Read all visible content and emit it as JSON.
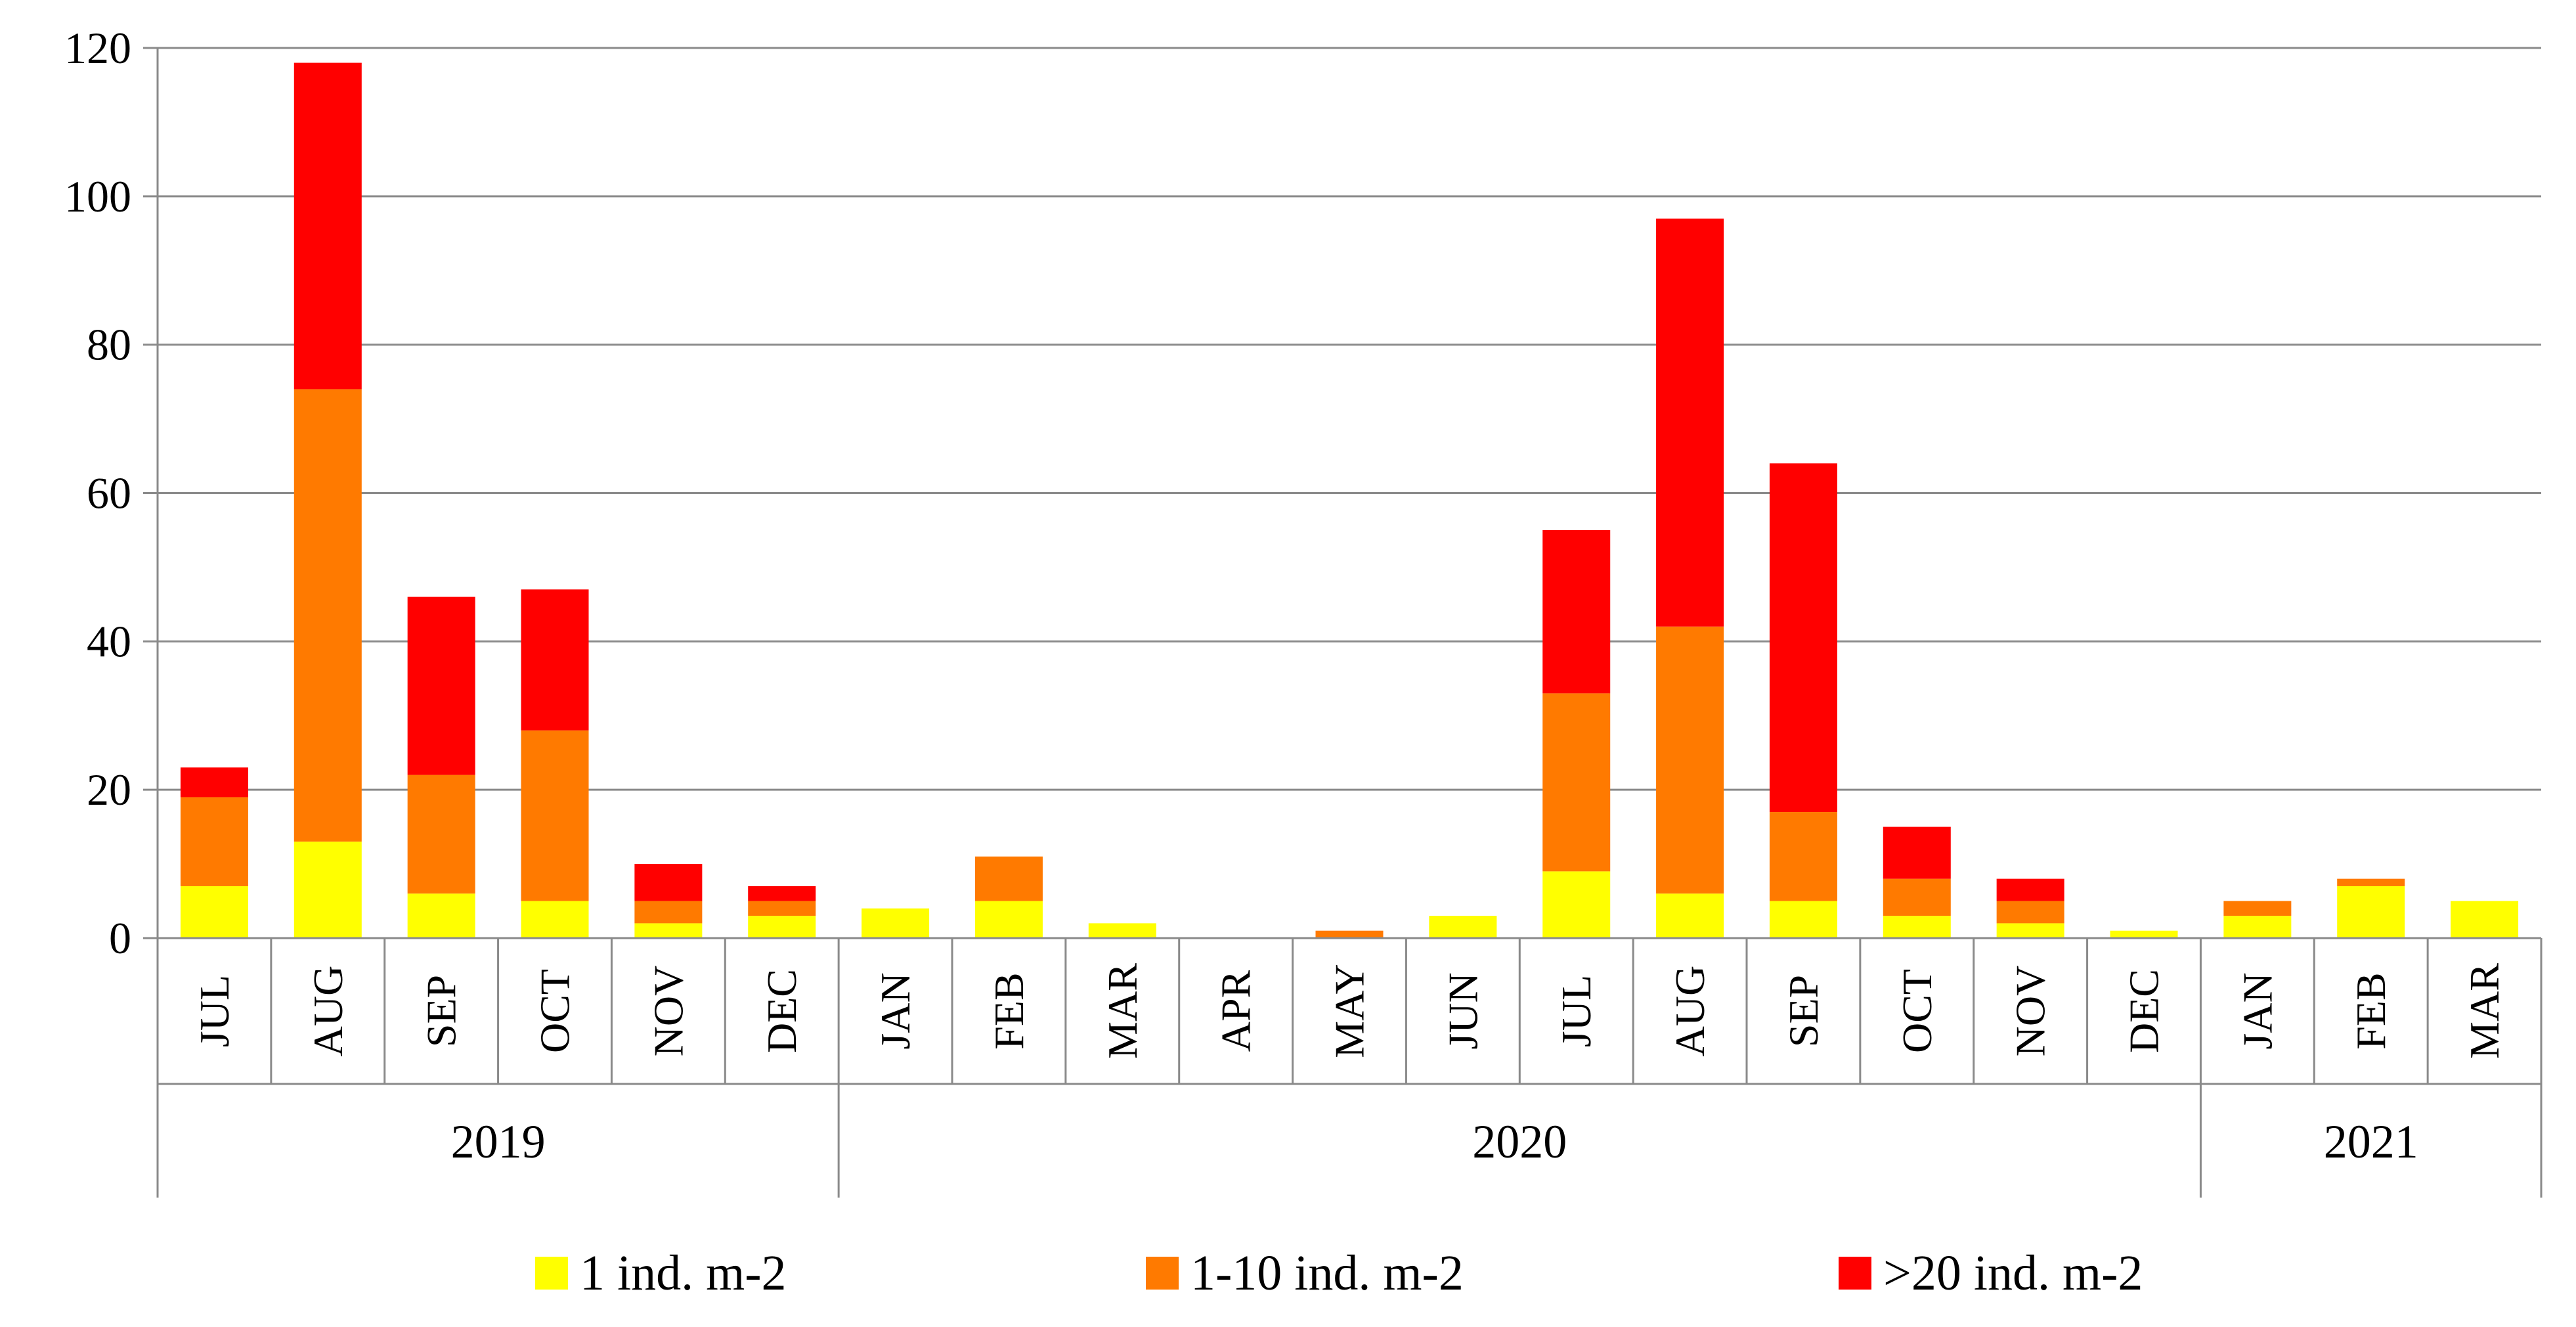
{
  "chart_data": {
    "type": "bar",
    "stacked": true,
    "months": [
      "JUL",
      "AUG",
      "SEP",
      "OCT",
      "NOV",
      "DEC",
      "JAN",
      "FEB",
      "MAR",
      "APR",
      "MAY",
      "JUN",
      "JUL",
      "AUG",
      "SEP",
      "OCT",
      "NOV",
      "DEC",
      "JAN",
      "FEB",
      "MAR"
    ],
    "years": [
      {
        "label": "2019",
        "months": 6
      },
      {
        "label": "2020",
        "months": 12
      },
      {
        "label": "2021",
        "months": 3
      }
    ],
    "series": [
      {
        "name": "1 ind. m-2",
        "color": "#ffff00",
        "values": [
          7,
          13,
          6,
          5,
          2,
          3,
          4,
          5,
          2,
          0,
          0,
          3,
          9,
          6,
          5,
          3,
          2,
          1,
          3,
          7,
          5
        ]
      },
      {
        "name": "1-10 ind. m-2",
        "color": "#ff7a00",
        "values": [
          12,
          61,
          16,
          23,
          3,
          2,
          0,
          6,
          0,
          0,
          1,
          0,
          24,
          36,
          12,
          5,
          3,
          0,
          2,
          1,
          0
        ]
      },
      {
        "name": ">20 ind. m-2",
        "color": "#ff0000",
        "values": [
          4,
          44,
          24,
          19,
          5,
          2,
          0,
          0,
          0,
          0,
          0,
          0,
          22,
          55,
          47,
          7,
          3,
          0,
          0,
          0,
          0
        ]
      }
    ],
    "ylim": [
      0,
      120
    ],
    "yticks": [
      "0",
      "20",
      "40",
      "60",
      "80",
      "100",
      "120"
    ],
    "grid": true,
    "legend_position": "bottom"
  }
}
